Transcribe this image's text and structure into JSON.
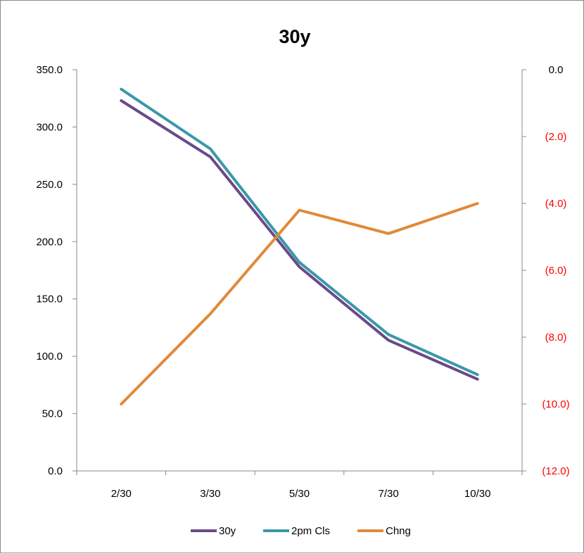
{
  "chart_data": {
    "type": "line",
    "title": "30y",
    "categories": [
      "2/30",
      "3/30",
      "5/30",
      "7/30",
      "10/30"
    ],
    "left_axis": {
      "min": 0,
      "max": 350,
      "step": 50,
      "tick_labels": [
        "0.0",
        "50.0",
        "100.0",
        "150.0",
        "200.0",
        "250.0",
        "300.0",
        "350.0"
      ]
    },
    "right_axis": {
      "min": -12,
      "max": 0,
      "step": 2,
      "tick_labels": [
        "0.0",
        "(2.0)",
        "(4.0)",
        "(6.0)",
        "(8.0)",
        "(10.0)",
        "(12.0)"
      ],
      "negative_label_color": "#ff0000"
    },
    "series": [
      {
        "name": "30y",
        "axis": "left",
        "color": "#6a4a8a",
        "values": [
          323,
          274,
          178,
          114,
          80
        ]
      },
      {
        "name": "2pm Cls",
        "axis": "left",
        "color": "#3a98a8",
        "values": [
          333,
          281,
          182,
          119,
          84
        ]
      },
      {
        "name": "Chng",
        "axis": "right",
        "color": "#e08a3a",
        "values": [
          -10.0,
          -7.3,
          -4.2,
          -4.9,
          -4.0
        ]
      }
    ],
    "legend_position": "bottom",
    "grid": false
  }
}
